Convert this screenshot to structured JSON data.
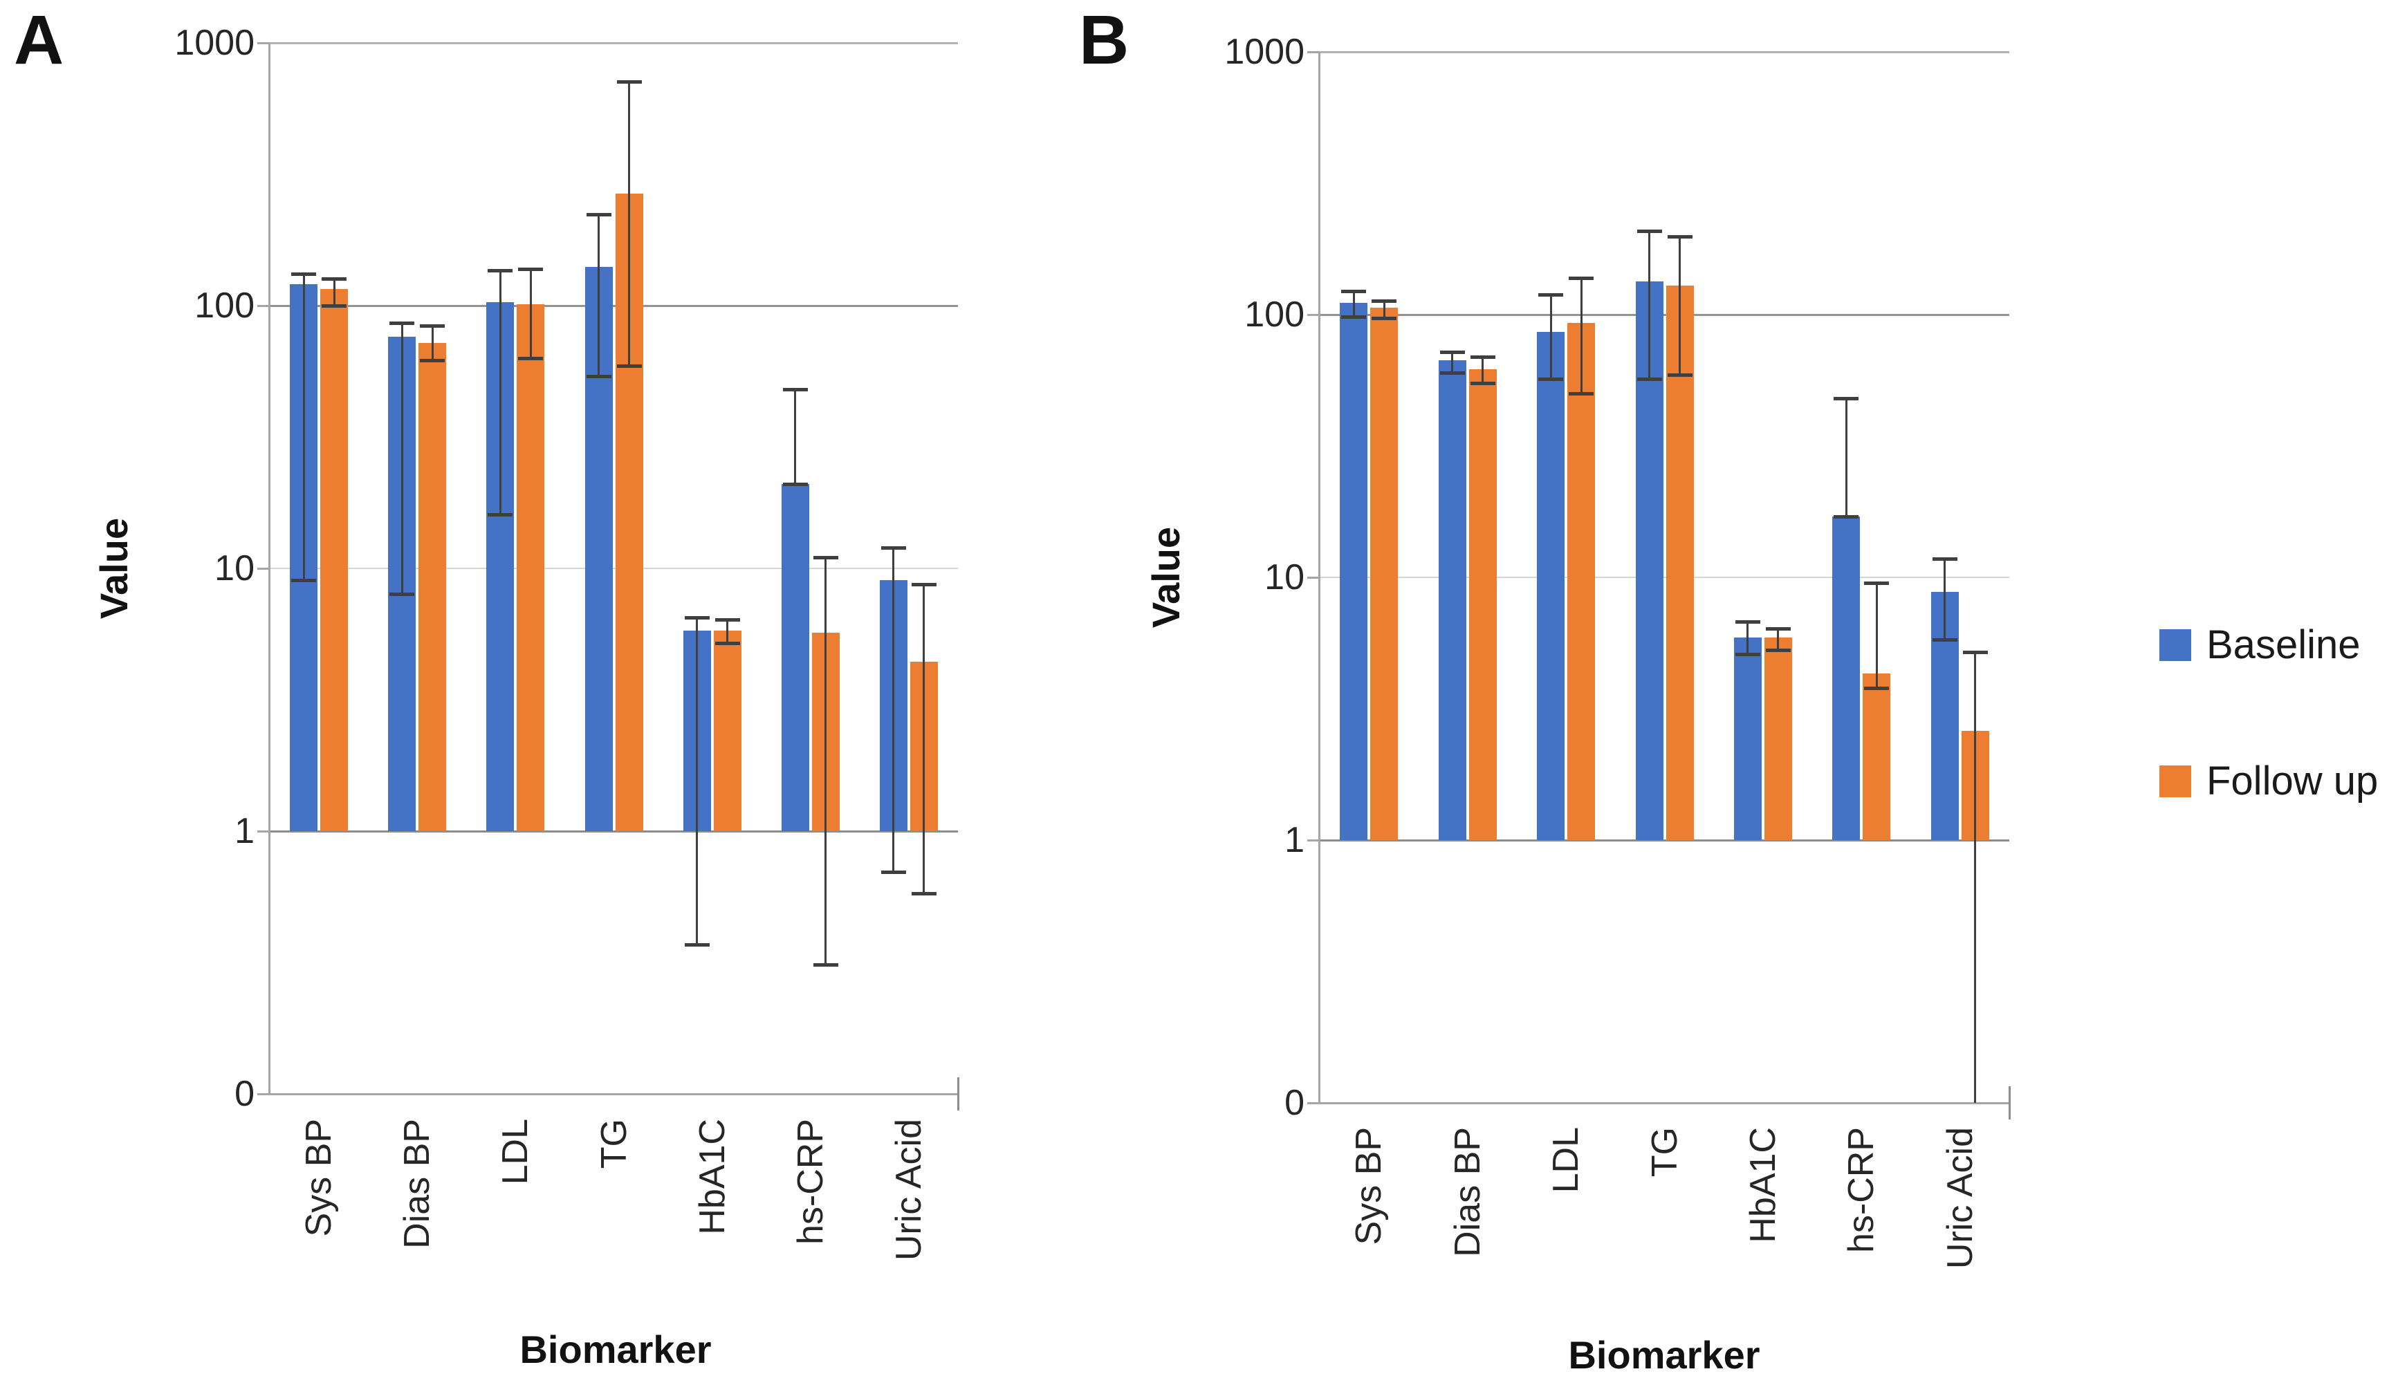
{
  "legend": {
    "items": [
      {
        "label": "Baseline",
        "color": "#4472C4"
      },
      {
        "label": "Follow up",
        "color": "#ED7D31"
      }
    ]
  },
  "chart_data": [
    {
      "type": "bar",
      "panel_label": "A",
      "xlabel": "Biomarker",
      "ylabel": "Value",
      "yscale": "log",
      "ylim": [
        0.1,
        1000
      ],
      "yticks": [
        "1000",
        "100",
        "10",
        "1",
        "0"
      ],
      "ytick_values": [
        1000,
        100,
        10,
        1,
        0.1
      ],
      "grid": true,
      "legend_position": "right",
      "categories": [
        "Sys BP",
        "Dias BP",
        "LDL",
        "TG",
        "HbA1C",
        "hs-CRP",
        "Uric Acid"
      ],
      "series": [
        {
          "name": "Baseline",
          "color": "#4472C4",
          "values": [
            121,
            76,
            103,
            140,
            5.8,
            21,
            9.0
          ],
          "err_lo": [
            9,
            8,
            16,
            54,
            0.37,
            21,
            0.7
          ],
          "err_hi": [
            132,
            86,
            136,
            223,
            6.5,
            48,
            12
          ]
        },
        {
          "name": "Follow up",
          "color": "#ED7D31",
          "values": [
            116,
            72,
            101,
            267,
            5.8,
            5.7,
            4.4
          ],
          "err_lo": [
            100,
            62,
            63,
            59,
            5.2,
            0.31,
            0.58
          ],
          "err_hi": [
            127,
            84,
            138,
            714,
            6.4,
            11,
            8.7
          ]
        }
      ]
    },
    {
      "type": "bar",
      "panel_label": "B",
      "xlabel": "Biomarker",
      "ylabel": "Value",
      "yscale": "log",
      "ylim": [
        0.1,
        1000
      ],
      "yticks": [
        "1000",
        "100",
        "10",
        "1",
        "0"
      ],
      "ytick_values": [
        1000,
        100,
        10,
        1,
        0.1
      ],
      "grid": true,
      "legend_position": "right",
      "categories": [
        "Sys BP",
        "Dias BP",
        "LDL",
        "TG",
        "HbA1C",
        "hs-CRP",
        "Uric Acid"
      ],
      "series": [
        {
          "name": "Baseline",
          "color": "#4472C4",
          "values": [
            111,
            67,
            86,
            134,
            5.9,
            17,
            8.8
          ],
          "err_lo": [
            98,
            60,
            57,
            57,
            5.1,
            17,
            5.8
          ],
          "err_hi": [
            123,
            72,
            119,
            208,
            6.8,
            48,
            11.8
          ]
        },
        {
          "name": "Follow up",
          "color": "#ED7D31",
          "values": [
            106,
            62,
            93,
            129,
            5.9,
            4.3,
            2.6
          ],
          "err_lo": [
            97,
            55,
            50,
            59,
            5.3,
            3.8,
            0.1
          ],
          "err_hi": [
            113,
            69,
            138,
            198,
            6.4,
            9.5,
            5.2
          ]
        }
      ]
    }
  ]
}
